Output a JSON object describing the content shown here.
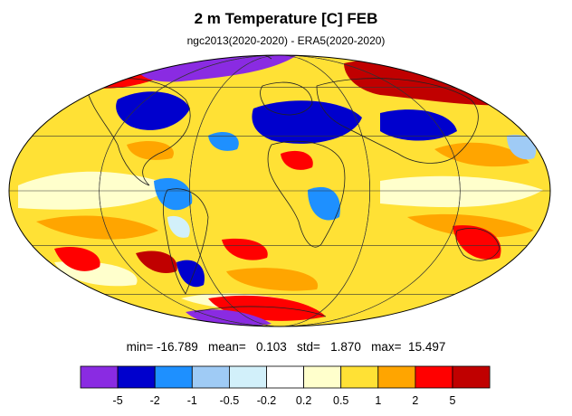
{
  "chart_data": {
    "type": "heatmap",
    "projection": "mollweide",
    "title": "2 m Temperature [C] FEB",
    "subtitle": "ngc2013(2020-2020) - ERA5(2020-2020)",
    "stats": {
      "text": "min= -16.789   mean=   0.103   std=   1.870   max=  15.497",
      "min": -16.789,
      "mean": 0.103,
      "std": 1.87,
      "max": 15.497
    },
    "colorbar": {
      "colors": [
        "#8a2be2",
        "#0000cd",
        "#1e90ff",
        "#9fcbf5",
        "#d2f0fa",
        "#ffffff",
        "#ffffcc",
        "#ffe135",
        "#ffa500",
        "#ff0000",
        "#c00000"
      ],
      "tick_labels": [
        "-5",
        "-2",
        "-1",
        "-0.5",
        "-0.2",
        "0.2",
        "0.5",
        "1",
        "2",
        "5"
      ],
      "levels": [
        -5,
        -2,
        -1,
        -0.5,
        -0.2,
        0.2,
        0.5,
        1,
        2,
        5
      ]
    },
    "grid": true,
    "palette": {
      "warm": "#ffe135",
      "pale": "#ffffcc",
      "orange": "#ffa500",
      "red": "#ff0000",
      "darkred": "#c00000",
      "purple": "#8a2be2",
      "navy": "#0000cd",
      "blue": "#1e90ff",
      "lightblue": "#9fcbf5",
      "paleblue": "#d2f0fa"
    }
  }
}
